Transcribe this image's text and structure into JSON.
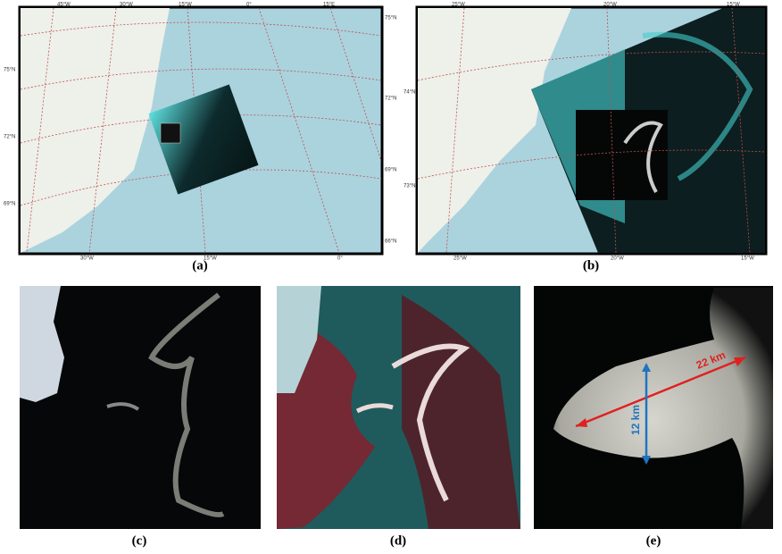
{
  "panels": [
    {
      "label": "(a)",
      "top": [
        "45°W",
        "30°W",
        "15°W",
        "0°",
        "15°E"
      ],
      "left": [
        "75°N",
        "72°N",
        "69°N"
      ],
      "right": [
        "75°N",
        "72°N",
        "69°N",
        "66°N"
      ],
      "bottom": [
        "30°W",
        "15°W",
        "0°"
      ]
    },
    {
      "label": "(b)",
      "top": [
        "25°W",
        "20°W",
        "15°W"
      ],
      "left": [
        "74°N",
        "73°N"
      ],
      "bottom": [
        "25°W",
        "20°W",
        "15°W"
      ]
    },
    {
      "label": "(c)"
    },
    {
      "label": "(d)"
    },
    {
      "label": "(e)",
      "annotations": [
        "22 km",
        "12 km"
      ]
    }
  ]
}
